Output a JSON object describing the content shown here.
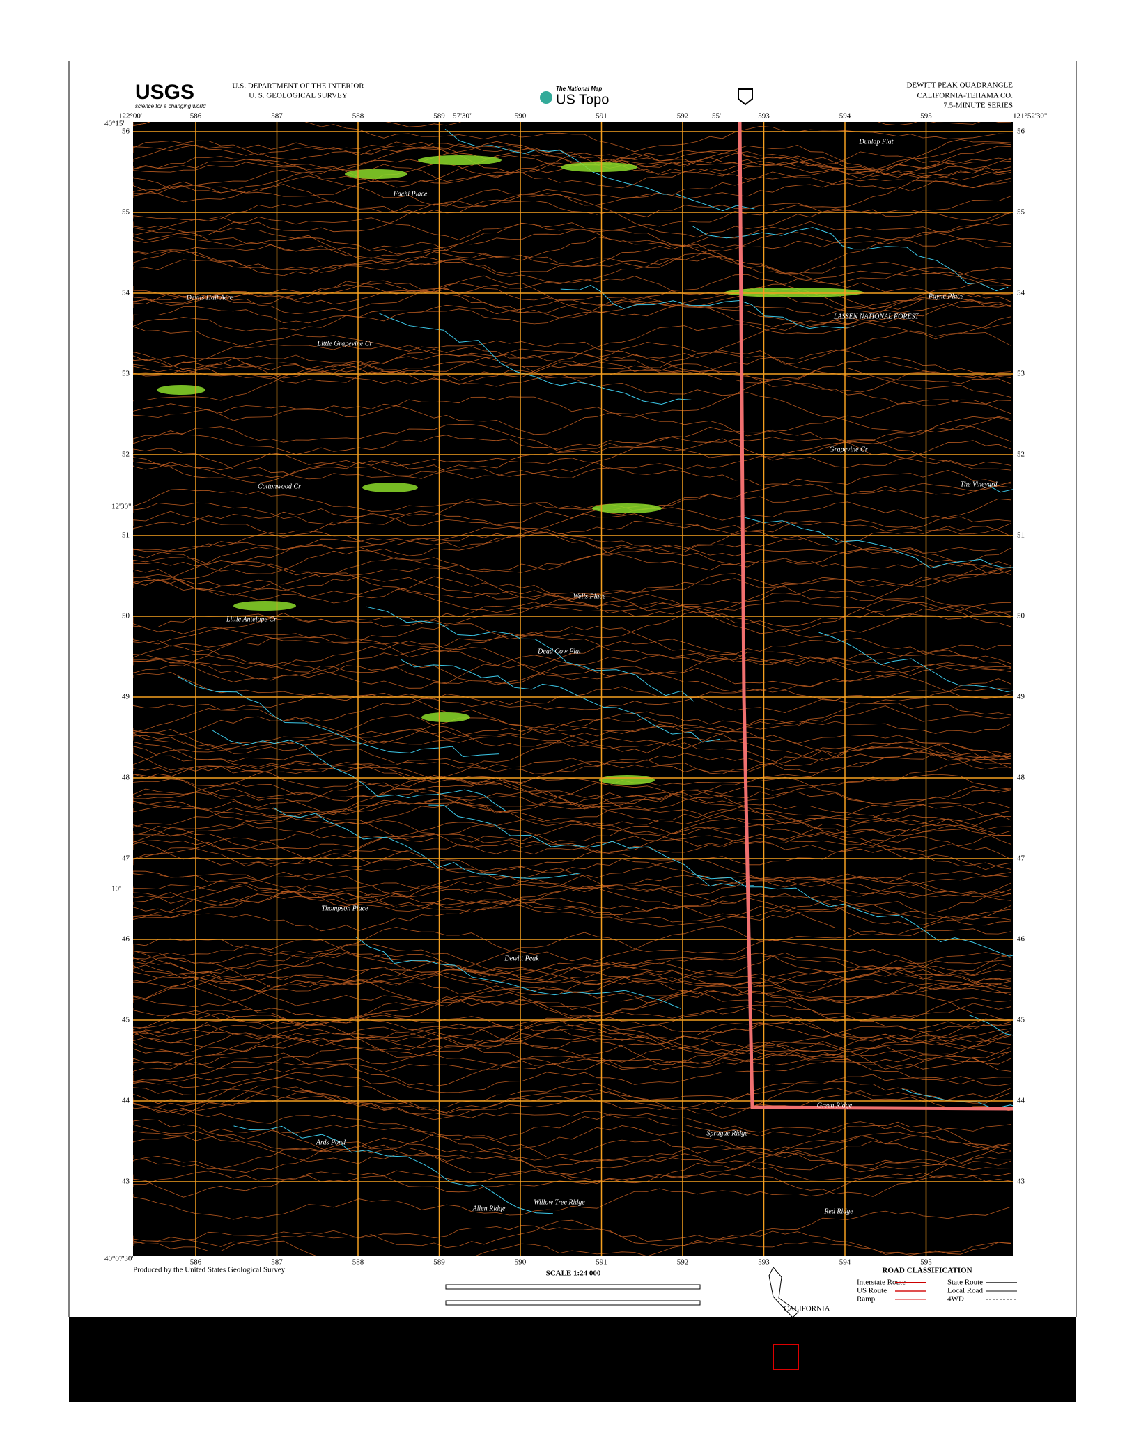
{
  "header": {
    "agency_logo": "USGS",
    "agency_tagline": "science for a changing world",
    "department": "U.S. DEPARTMENT OF THE INTERIOR",
    "survey": "U. S. GEOLOGICAL SURVEY",
    "national_map": "The National Map",
    "us_topo": "US Topo",
    "quadrangle": "DEWITT PEAK QUADRANGLE",
    "county": "CALIFORNIA-TEHAMA CO.",
    "series": "7.5-MINUTE SERIES"
  },
  "corners": {
    "top_left_lon": "122°00'",
    "top_left_lat": "40°15'",
    "top_right_lon": "121°52'30\"",
    "bottom_left_lat": "40°07'30\"",
    "top_mid_1": "57'30\"",
    "top_mid_2": "55'",
    "left_mid_1": "12'30\"",
    "left_mid_2": "10'"
  },
  "grid": {
    "eastings": [
      "586",
      "587",
      "588",
      "589",
      "590",
      "591",
      "592",
      "593",
      "594",
      "595"
    ],
    "northings": [
      "56",
      "55",
      "54",
      "53",
      "52",
      "51",
      "50",
      "49",
      "48",
      "47",
      "46",
      "45",
      "44",
      "43"
    ]
  },
  "places": [
    "Fachi Place",
    "Dunlap Flat",
    "Payne Place",
    "LASSEN NATIONAL FOREST",
    "Devils Half Acre",
    "Little Grapevine Cr",
    "Cottonwood Cr",
    "Wells Place",
    "Dead Cow Flat",
    "Little Antelope Cr",
    "Thompson Place",
    "Dewitt Peak",
    "Ards Pond",
    "Sprague Ridge",
    "Green Ridge",
    "Allen Ridge",
    "Willow Tree Ridge",
    "Red Ridge",
    "The Vineyard",
    "Grapevine Cr"
  ],
  "footer": {
    "producer": "Produced by the United States Geological Survey",
    "scale": "SCALE 1:24 000",
    "road_title": "ROAD CLASSIFICATION",
    "roads": [
      "Interstate Route",
      "US Route",
      "Ramp",
      "State Route",
      "Local Road",
      "4WD"
    ],
    "location_state": "CALIFORNIA"
  }
}
